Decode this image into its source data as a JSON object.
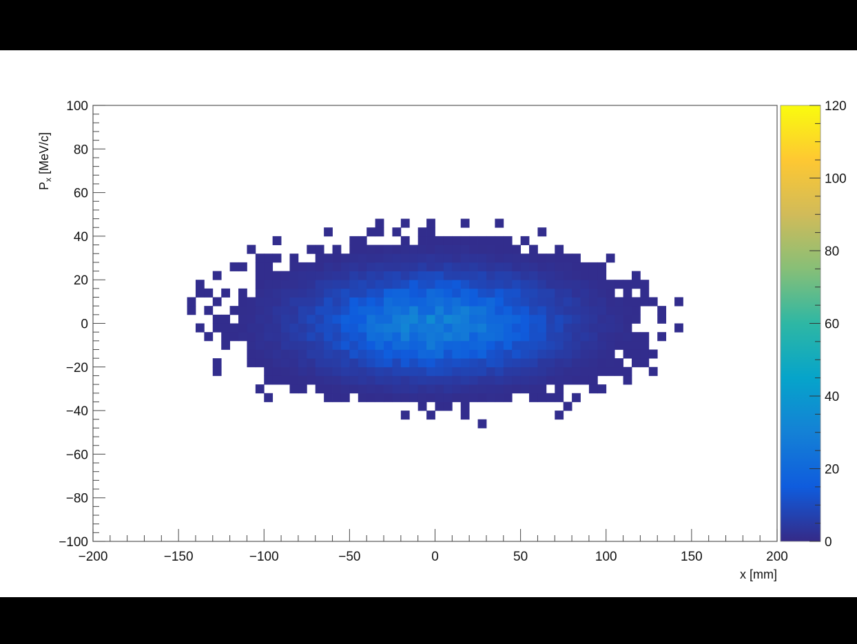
{
  "chart_data": {
    "type": "heatmap",
    "title": "",
    "xlabel": "x [mm]",
    "ylabel": "P",
    "ylabel_subscript": "x",
    "ylabel_unit": " [MeV/c]",
    "xlim": [
      -200,
      200
    ],
    "ylim": [
      -100,
      100
    ],
    "x_ticks": [
      -200,
      -150,
      -100,
      -50,
      0,
      50,
      100,
      150,
      200
    ],
    "y_ticks": [
      -100,
      -80,
      -60,
      -40,
      -20,
      0,
      20,
      40,
      60,
      80,
      100
    ],
    "x_tick_labels": [
      "−200",
      "−150",
      "−100",
      "−50",
      "0",
      "50",
      "100",
      "150",
      "200"
    ],
    "y_tick_labels": [
      "−100",
      "−80",
      "−60",
      "−40",
      "−20",
      "0",
      "20",
      "40",
      "60",
      "80",
      "100"
    ],
    "bin_width_x": 5,
    "bin_width_y": 4,
    "distribution": {
      "mean_x": 0,
      "mean_y": 0,
      "sigma_x": 45,
      "sigma_y": 14,
      "peak_count": 28
    },
    "z_range": [
      0,
      120
    ],
    "z_ticks": [
      0,
      20,
      40,
      60,
      80,
      100,
      120
    ],
    "z_tick_labels": [
      "0",
      "20",
      "40",
      "60",
      "80",
      "100",
      "120"
    ],
    "colormap": [
      "#352a87",
      "#0f5cdd",
      "#1481d6",
      "#06a4ca",
      "#2eb7a4",
      "#87bf77",
      "#d1bb59",
      "#fec832",
      "#f9fb0e"
    ],
    "legend": "colorbar-right",
    "grid": false
  }
}
